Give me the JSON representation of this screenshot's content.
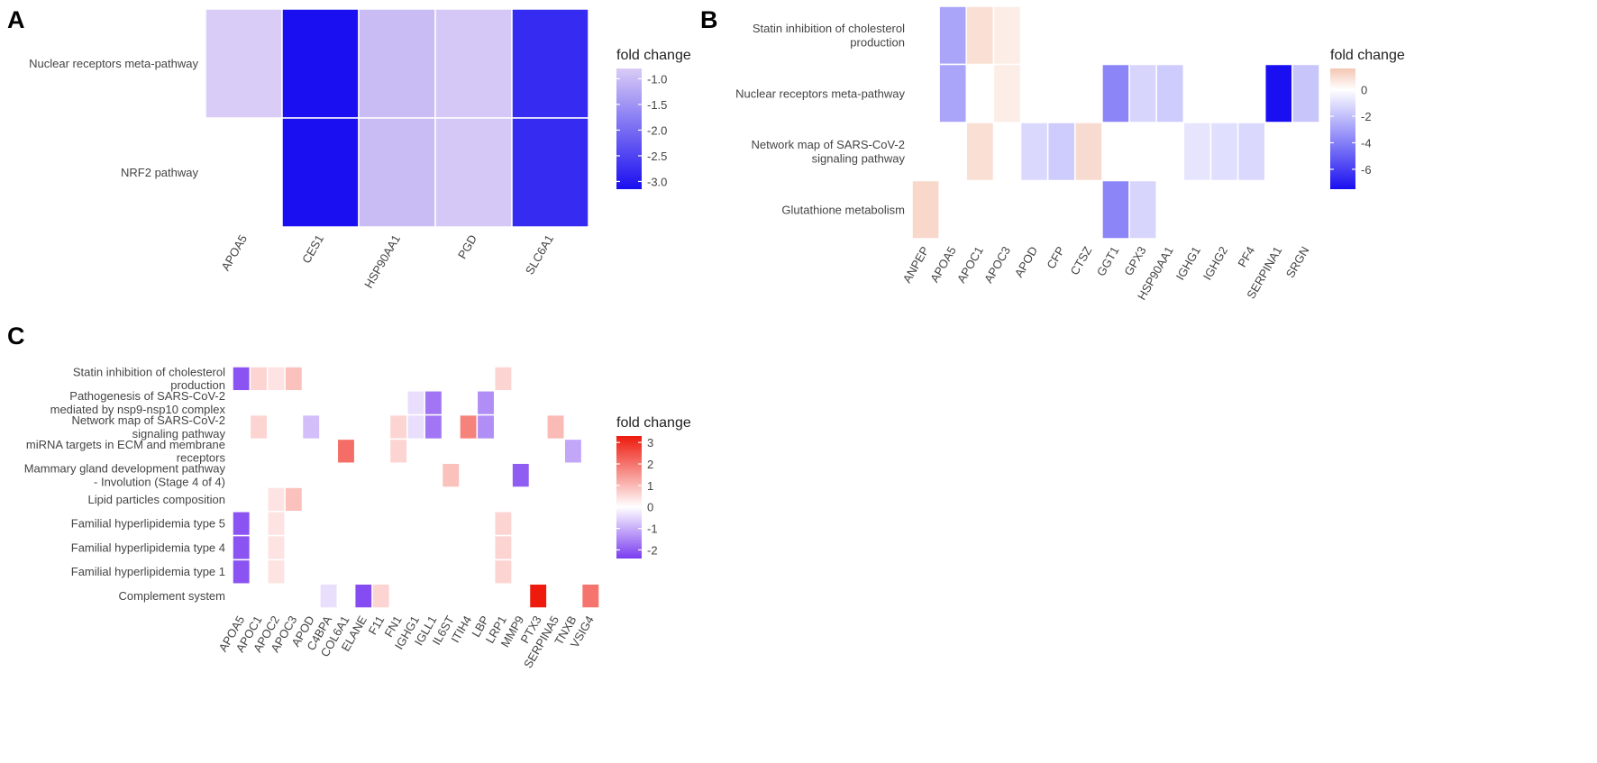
{
  "chart_data": [
    {
      "panel": "A",
      "type": "heatmap",
      "y_categories": [
        "NRF2 pathway",
        "Nuclear receptors meta-pathway"
      ],
      "x_categories": [
        "APOA5",
        "CES1",
        "HSP90AA1",
        "PGD",
        "SLC6A1"
      ],
      "cells": [
        {
          "y": "Nuclear receptors meta-pathway",
          "x": "APOA5",
          "value": -0.8
        },
        {
          "y": "Nuclear receptors meta-pathway",
          "x": "CES1",
          "value": -3.15
        },
        {
          "y": "Nuclear receptors meta-pathway",
          "x": "HSP90AA1",
          "value": -1.0
        },
        {
          "y": "Nuclear receptors meta-pathway",
          "x": "PGD",
          "value": -0.85
        },
        {
          "y": "Nuclear receptors meta-pathway",
          "x": "SLC6A1",
          "value": -2.8
        },
        {
          "y": "NRF2 pathway",
          "x": "CES1",
          "value": -3.15
        },
        {
          "y": "NRF2 pathway",
          "x": "HSP90AA1",
          "value": -1.0
        },
        {
          "y": "NRF2 pathway",
          "x": "PGD",
          "value": -0.85
        },
        {
          "y": "NRF2 pathway",
          "x": "SLC6A1",
          "value": -2.8
        }
      ],
      "legend": {
        "title": "fold change",
        "ticks": [
          -1.0,
          -1.5,
          -2.0,
          -2.5,
          -3.0
        ],
        "tick_labels": [
          "-1.0",
          "-1.5",
          "-2.0",
          "-2.5",
          "-3.0"
        ],
        "range": [
          -3.15,
          -0.8
        ]
      },
      "colors": {
        "low": "#1a0ff0",
        "high": "#d9ccf6"
      }
    },
    {
      "panel": "B",
      "type": "heatmap",
      "y_categories": [
        "Glutathione metabolism",
        "Network map of SARS-CoV-2 signaling pathway",
        "Nuclear receptors meta-pathway",
        "Statin inhibition of cholesterol production"
      ],
      "x_categories": [
        "ANPEP",
        "APOA5",
        "APOC1",
        "APOC3",
        "APOD",
        "CFP",
        "CTSZ",
        "GGT1",
        "GPX3",
        "HSP90AA1",
        "IGHG1",
        "IGHG2",
        "PF4",
        "SERPINA1",
        "SRGN"
      ],
      "cells": [
        {
          "y": "Statin inhibition of cholesterol production",
          "x": "APOA5",
          "value": -2.8
        },
        {
          "y": "Statin inhibition of cholesterol production",
          "x": "APOC1",
          "value": 0.9
        },
        {
          "y": "Statin inhibition of cholesterol production",
          "x": "APOC3",
          "value": 0.5
        },
        {
          "y": "Nuclear receptors meta-pathway",
          "x": "APOA5",
          "value": -2.8
        },
        {
          "y": "Nuclear receptors meta-pathway",
          "x": "APOC3",
          "value": 0.5
        },
        {
          "y": "Nuclear receptors meta-pathway",
          "x": "GGT1",
          "value": -3.8
        },
        {
          "y": "Nuclear receptors meta-pathway",
          "x": "GPX3",
          "value": -1.3
        },
        {
          "y": "Nuclear receptors meta-pathway",
          "x": "HSP90AA1",
          "value": -1.6
        },
        {
          "y": "Nuclear receptors meta-pathway",
          "x": "SERPINA1",
          "value": -7.5
        },
        {
          "y": "Nuclear receptors meta-pathway",
          "x": "SRGN",
          "value": -1.8
        },
        {
          "y": "Network map of SARS-CoV-2 signaling pathway",
          "x": "APOC1",
          "value": 0.9
        },
        {
          "y": "Network map of SARS-CoV-2 signaling pathway",
          "x": "APOD",
          "value": -1.2
        },
        {
          "y": "Network map of SARS-CoV-2 signaling pathway",
          "x": "CFP",
          "value": -1.6
        },
        {
          "y": "Network map of SARS-CoV-2 signaling pathway",
          "x": "CTSZ",
          "value": 1.0
        },
        {
          "y": "Network map of SARS-CoV-2 signaling pathway",
          "x": "IGHG1",
          "value": -0.8
        },
        {
          "y": "Network map of SARS-CoV-2 signaling pathway",
          "x": "IGHG2",
          "value": -1.0
        },
        {
          "y": "Network map of SARS-CoV-2 signaling pathway",
          "x": "PF4",
          "value": -1.2
        },
        {
          "y": "Glutathione metabolism",
          "x": "ANPEP",
          "value": 1.1
        },
        {
          "y": "Glutathione metabolism",
          "x": "GGT1",
          "value": -3.8
        },
        {
          "y": "Glutathione metabolism",
          "x": "GPX3",
          "value": -1.3
        }
      ],
      "legend": {
        "title": "fold change",
        "ticks": [
          0,
          -2,
          -4,
          -6
        ],
        "tick_labels": [
          "0",
          "-2",
          "-4",
          "-6"
        ],
        "range": [
          -7.5,
          1.6
        ]
      },
      "colors": {
        "low": "#1a0ff0",
        "mid": "#ffffff",
        "high": "#f4c6b3"
      }
    },
    {
      "panel": "C",
      "type": "heatmap",
      "y_categories": [
        "Complement system",
        "Familial  hyperlipidemia type 1",
        "Familial hyperlipidemia type 4",
        "Familial hyperlipidemia type 5",
        "Lipid particles composition",
        "Mammary gland development pathway - Involution (Stage 4 of 4)",
        "miRNA targets in ECM and membrane receptors",
        "Network map of SARS-CoV-2 signaling pathway",
        "Pathogenesis of SARS-CoV-2 mediated by nsp9-nsp10 complex",
        "Statin inhibition of cholesterol production"
      ],
      "x_categories": [
        "APOA5",
        "APOC1",
        "APOC2",
        "APOC3",
        "APOD",
        "C4BPA",
        "COL6A1",
        "ELANE",
        "F11",
        "FN1",
        "IGHG1",
        "IGLL1",
        "IL6ST",
        "ITIH4",
        "LBP",
        "LRP1",
        "MMP9",
        "PTX3",
        "SERPINA5",
        "TNXB",
        "VSIG4"
      ],
      "cells": [
        {
          "y": "Statin inhibition of cholesterol production",
          "x": "APOA5",
          "value": -2.1
        },
        {
          "y": "Statin inhibition of cholesterol production",
          "x": "APOC1",
          "value": 0.6
        },
        {
          "y": "Statin inhibition of cholesterol production",
          "x": "APOC2",
          "value": 0.4
        },
        {
          "y": "Statin inhibition of cholesterol production",
          "x": "APOC3",
          "value": 0.9
        },
        {
          "y": "Statin inhibition of cholesterol production",
          "x": "LRP1",
          "value": 0.6
        },
        {
          "y": "Pathogenesis of SARS-CoV-2 mediated by nsp9-nsp10 complex",
          "x": "IGHG1",
          "value": -0.4
        },
        {
          "y": "Pathogenesis of SARS-CoV-2 mediated by nsp9-nsp10 complex",
          "x": "IGLL1",
          "value": -1.7
        },
        {
          "y": "Pathogenesis of SARS-CoV-2 mediated by nsp9-nsp10 complex",
          "x": "LBP",
          "value": -1.4
        },
        {
          "y": "Network map of SARS-CoV-2 signaling pathway",
          "x": "APOC1",
          "value": 0.6
        },
        {
          "y": "Network map of SARS-CoV-2 signaling pathway",
          "x": "APOD",
          "value": -0.8
        },
        {
          "y": "Network map of SARS-CoV-2 signaling pathway",
          "x": "FN1",
          "value": 0.6
        },
        {
          "y": "Network map of SARS-CoV-2 signaling pathway",
          "x": "IGHG1",
          "value": -0.4
        },
        {
          "y": "Network map of SARS-CoV-2 signaling pathway",
          "x": "IGLL1",
          "value": -1.7
        },
        {
          "y": "Network map of SARS-CoV-2 signaling pathway",
          "x": "ITIH4",
          "value": 1.8
        },
        {
          "y": "Network map of SARS-CoV-2 signaling pathway",
          "x": "LBP",
          "value": -1.4
        },
        {
          "y": "Network map of SARS-CoV-2 signaling pathway",
          "x": "SERPINA5",
          "value": 1.0
        },
        {
          "y": "miRNA targets in ECM and membrane receptors",
          "x": "COL6A1",
          "value": 2.1
        },
        {
          "y": "miRNA targets in ECM and membrane receptors",
          "x": "FN1",
          "value": 0.6
        },
        {
          "y": "miRNA targets in ECM and membrane receptors",
          "x": "TNXB",
          "value": -1.1
        },
        {
          "y": "Mammary gland development pathway - Involution (Stage 4 of 4)",
          "x": "IL6ST",
          "value": 0.9
        },
        {
          "y": "Mammary gland development pathway - Involution (Stage 4 of 4)",
          "x": "MMP9",
          "value": -2.0
        },
        {
          "y": "Lipid particles composition",
          "x": "APOC2",
          "value": 0.4
        },
        {
          "y": "Lipid particles composition",
          "x": "APOC3",
          "value": 0.9
        },
        {
          "y": "Familial hyperlipidemia type 5",
          "x": "APOA5",
          "value": -2.1
        },
        {
          "y": "Familial hyperlipidemia type 5",
          "x": "APOC2",
          "value": 0.4
        },
        {
          "y": "Familial hyperlipidemia type 5",
          "x": "LRP1",
          "value": 0.6
        },
        {
          "y": "Familial hyperlipidemia type 4",
          "x": "APOA5",
          "value": -2.1
        },
        {
          "y": "Familial hyperlipidemia type 4",
          "x": "APOC2",
          "value": 0.4
        },
        {
          "y": "Familial hyperlipidemia type 4",
          "x": "LRP1",
          "value": 0.6
        },
        {
          "y": "Familial  hyperlipidemia type 1",
          "x": "APOA5",
          "value": -2.1
        },
        {
          "y": "Familial  hyperlipidemia type 1",
          "x": "APOC2",
          "value": 0.4
        },
        {
          "y": "Familial  hyperlipidemia type 1",
          "x": "LRP1",
          "value": 0.6
        },
        {
          "y": "Complement system",
          "x": "C4BPA",
          "value": -0.4
        },
        {
          "y": "Complement system",
          "x": "ELANE",
          "value": -2.2
        },
        {
          "y": "Complement system",
          "x": "F11",
          "value": 0.6
        },
        {
          "y": "Complement system",
          "x": "PTX3",
          "value": 3.3
        },
        {
          "y": "Complement system",
          "x": "VSIG4",
          "value": 2.0
        }
      ],
      "legend": {
        "title": "fold change",
        "ticks": [
          3,
          2,
          1,
          0,
          -1,
          -2
        ],
        "tick_labels": [
          "3",
          "2",
          "1",
          "0",
          "-1",
          "-2"
        ],
        "range": [
          -2.4,
          3.3
        ]
      },
      "colors": {
        "low": "#7a3cf0",
        "mid": "#ffffff",
        "high": "#ee1a0e"
      }
    }
  ]
}
